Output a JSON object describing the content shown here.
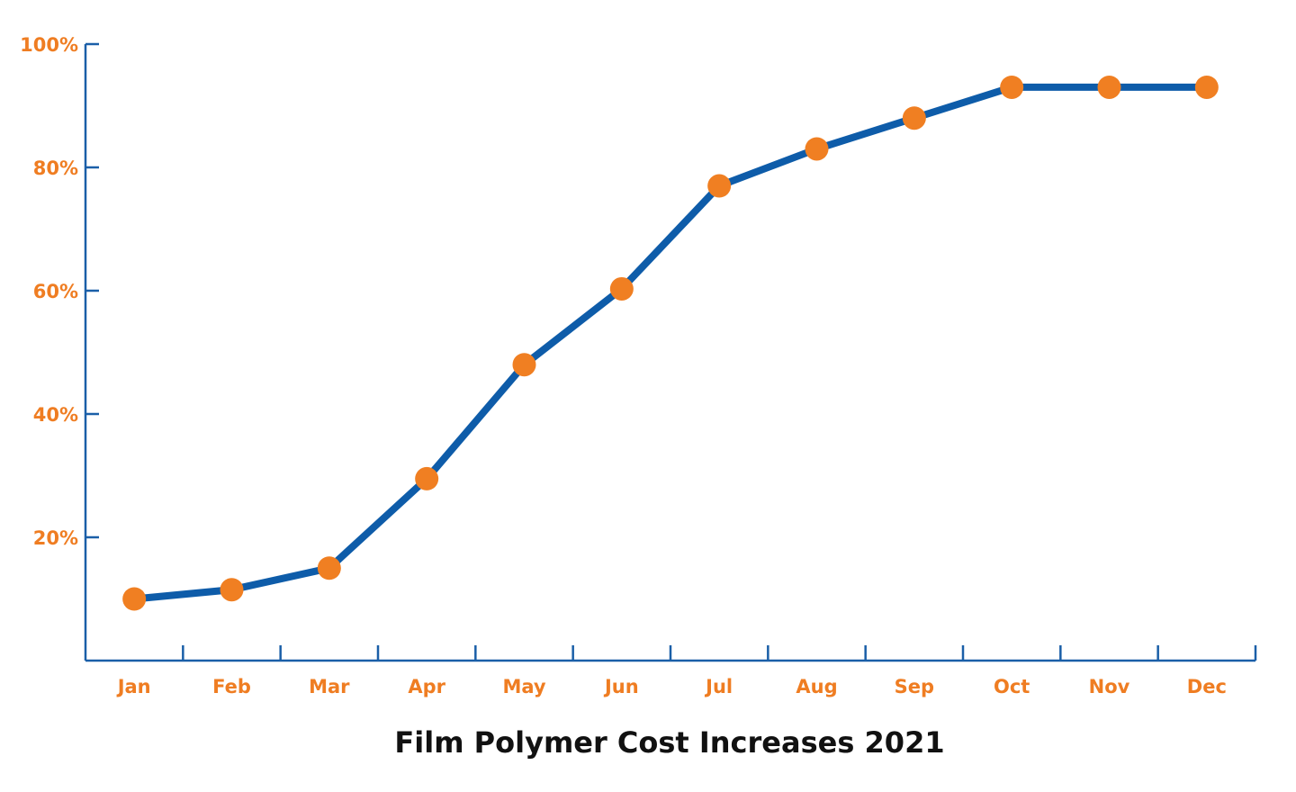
{
  "colors": {
    "axis": "#1a5fa8",
    "line": "#0e5ca9",
    "marker": "#f07f22",
    "label": "#ef7d22",
    "title": "#111111"
  },
  "chart_data": {
    "type": "line",
    "title": "Film Polymer Cost Increases 2021",
    "xlabel": "",
    "ylabel": "",
    "categories": [
      "Jan",
      "Feb",
      "Mar",
      "Apr",
      "May",
      "Jun",
      "Jul",
      "Aug",
      "Sep",
      "Oct",
      "Nov",
      "Dec"
    ],
    "series": [
      {
        "values": [
          10,
          11.5,
          15,
          29.5,
          48,
          60.3,
          77,
          83,
          88,
          93,
          93,
          93
        ]
      }
    ],
    "ylim": [
      0,
      100
    ],
    "yticks": [
      {
        "value": 20,
        "label": "20%"
      },
      {
        "value": 40,
        "label": "40%"
      },
      {
        "value": 60,
        "label": "60%"
      },
      {
        "value": 80,
        "label": "80%"
      },
      {
        "value": 100,
        "label": "100%"
      }
    ],
    "grid": false,
    "legend": "none"
  }
}
